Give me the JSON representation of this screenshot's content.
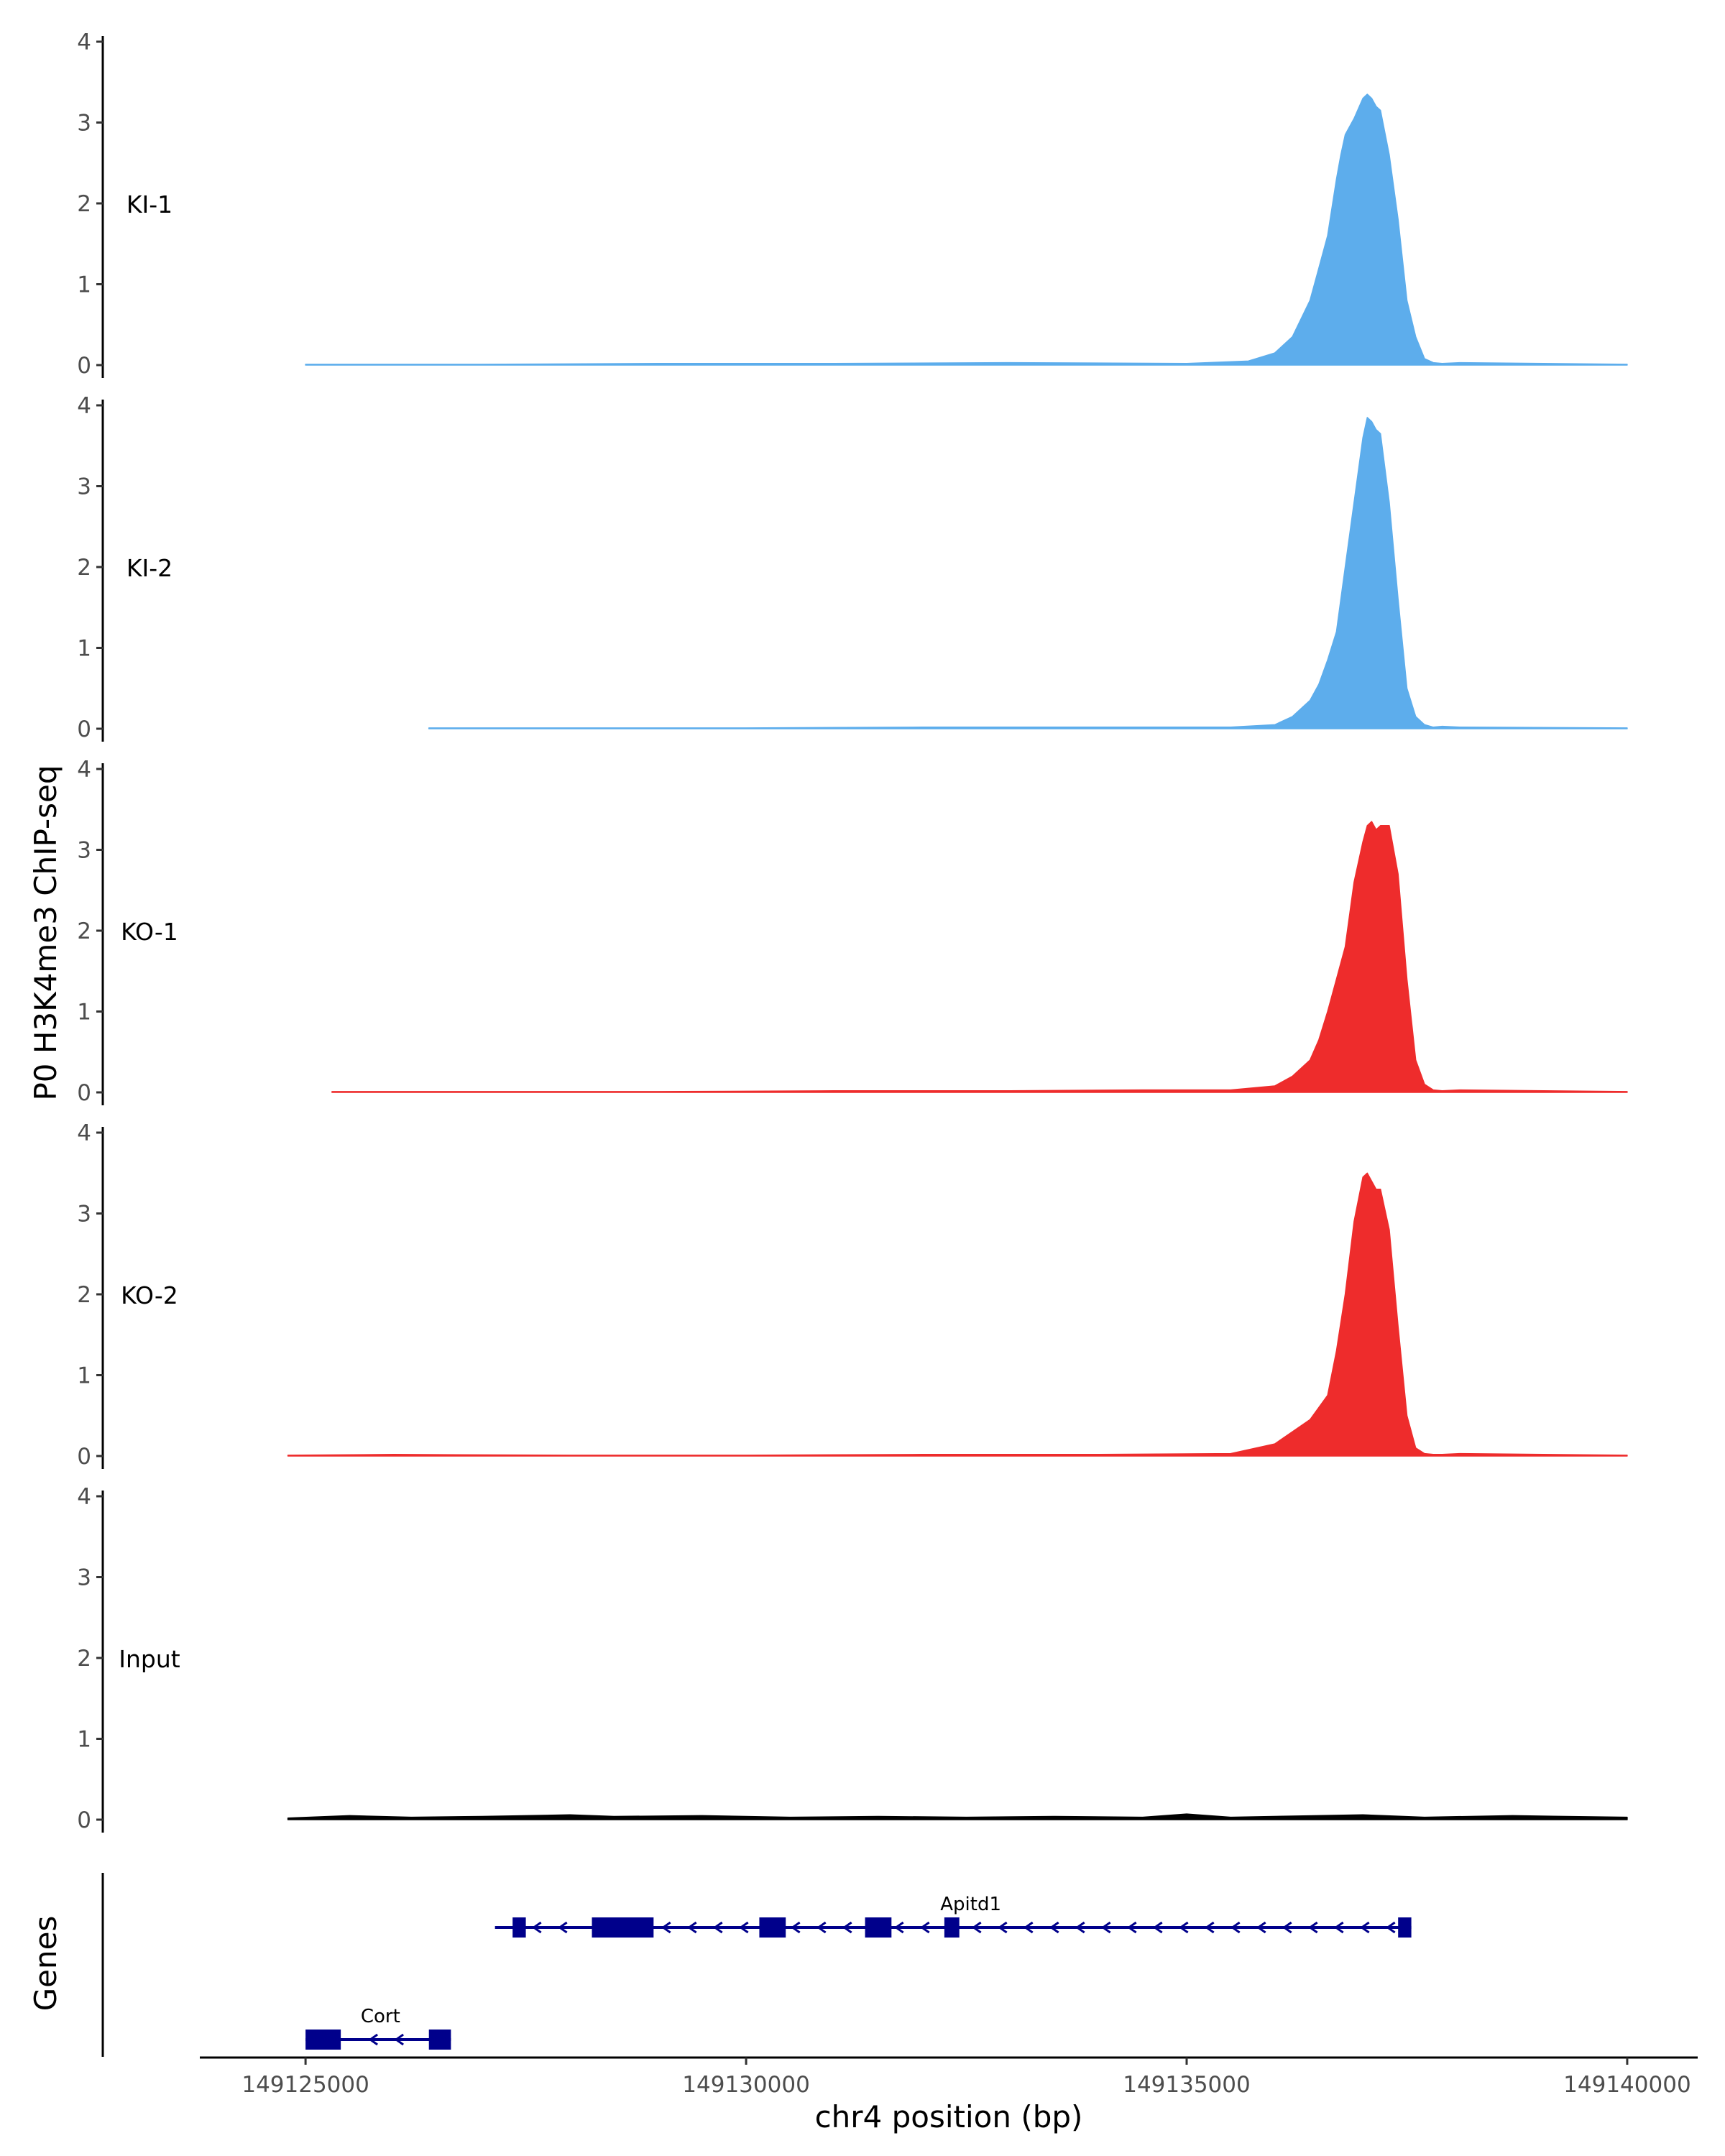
{
  "chart_data": {
    "type": "area",
    "ylabel": "P0 H3K4me3 ChIP-seq",
    "xlabel": "chr4 position (bp)",
    "genes_label": "Genes",
    "xlim": [
      149123800,
      149140800
    ],
    "ylim": [
      0,
      4
    ],
    "y_ticks": [
      "0",
      "1",
      "2",
      "3",
      "4"
    ],
    "x_ticks": [
      {
        "value": 149125000,
        "label": "149125000"
      },
      {
        "value": 149130000,
        "label": "149130000"
      },
      {
        "value": 149135000,
        "label": "149135000"
      },
      {
        "value": 149140000,
        "label": "149140000"
      }
    ],
    "colors": {
      "KI": "#5dadec",
      "KO": "#ee2c2c",
      "Input": "#000000",
      "gene": "#00008b"
    },
    "tracks": [
      {
        "label": "KI-1",
        "color": "#5dadec",
        "x": [
          149125000,
          149127000,
          149129000,
          149131000,
          149133000,
          149135000,
          149135700,
          149136000,
          149136200,
          149136400,
          149136500,
          149136600,
          149136700,
          149136750,
          149136800,
          149136900,
          149137000,
          149137050,
          149137100,
          149137150,
          149137200,
          149137300,
          149137400,
          149137500,
          149137600,
          149137700,
          149137800,
          149137900,
          149138100,
          149140000
        ],
        "y": [
          0.01,
          0.01,
          0.02,
          0.02,
          0.03,
          0.02,
          0.05,
          0.15,
          0.35,
          0.8,
          1.2,
          1.6,
          2.3,
          2.6,
          2.85,
          3.05,
          3.3,
          3.35,
          3.3,
          3.2,
          3.15,
          2.6,
          1.8,
          0.8,
          0.35,
          0.08,
          0.03,
          0.02,
          0.03,
          0.01
        ]
      },
      {
        "label": "KI-2",
        "color": "#5dadec",
        "x": [
          149126400,
          149128000,
          149130000,
          149132000,
          149134000,
          149135500,
          149136000,
          149136200,
          149136400,
          149136500,
          149136600,
          149136700,
          149136800,
          149136900,
          149137000,
          149137050,
          149137100,
          149137150,
          149137200,
          149137300,
          149137400,
          149137500,
          149137600,
          149137700,
          149137800,
          149137900,
          149138100,
          149140000
        ],
        "y": [
          0.01,
          0.01,
          0.01,
          0.02,
          0.02,
          0.02,
          0.05,
          0.15,
          0.35,
          0.55,
          0.85,
          1.2,
          2.0,
          2.8,
          3.6,
          3.85,
          3.8,
          3.7,
          3.65,
          2.8,
          1.6,
          0.5,
          0.15,
          0.05,
          0.02,
          0.03,
          0.02,
          0.01
        ]
      },
      {
        "label": "KO-1",
        "color": "#ee2c2c",
        "x": [
          149125300,
          149127500,
          149129000,
          149131000,
          149133000,
          149134500,
          149135500,
          149136000,
          149136200,
          149136400,
          149136500,
          149136600,
          149136700,
          149136800,
          149136900,
          149137000,
          149137050,
          149137100,
          149137150,
          149137200,
          149137300,
          149137400,
          149137500,
          149137600,
          149137700,
          149137800,
          149137900,
          149138100,
          149140000
        ],
        "y": [
          0.01,
          0.01,
          0.01,
          0.02,
          0.02,
          0.03,
          0.03,
          0.08,
          0.2,
          0.4,
          0.65,
          1.0,
          1.4,
          1.8,
          2.6,
          3.1,
          3.3,
          3.35,
          3.25,
          3.3,
          3.3,
          2.7,
          1.4,
          0.4,
          0.1,
          0.03,
          0.02,
          0.03,
          0.01
        ]
      },
      {
        "label": "KO-2",
        "color": "#ee2c2c",
        "x": [
          149124800,
          149126000,
          149128000,
          149130000,
          149132000,
          149134000,
          149135500,
          149136000,
          149136200,
          149136400,
          149136500,
          149136600,
          149136700,
          149136800,
          149136900,
          149137000,
          149137050,
          149137100,
          149137150,
          149137200,
          149137300,
          149137400,
          149137500,
          149137600,
          149137700,
          149137800,
          149137900,
          149138100,
          149140000
        ],
        "y": [
          0.01,
          0.02,
          0.01,
          0.01,
          0.02,
          0.02,
          0.03,
          0.15,
          0.3,
          0.45,
          0.6,
          0.75,
          1.3,
          2.0,
          2.9,
          3.45,
          3.5,
          3.4,
          3.3,
          3.3,
          2.8,
          1.6,
          0.5,
          0.1,
          0.03,
          0.02,
          0.02,
          0.03,
          0.01
        ]
      },
      {
        "label": "Input",
        "color": "#000000",
        "x": [
          149124800,
          149125500,
          149126200,
          149127000,
          149128000,
          149128500,
          149129500,
          149130500,
          149131500,
          149132500,
          149133500,
          149134500,
          149135000,
          149135500,
          149136500,
          149137000,
          149137700,
          149138700,
          149139300,
          149140000
        ],
        "y": [
          0.02,
          0.05,
          0.03,
          0.04,
          0.06,
          0.04,
          0.05,
          0.03,
          0.04,
          0.03,
          0.04,
          0.03,
          0.07,
          0.03,
          0.05,
          0.06,
          0.03,
          0.05,
          0.04,
          0.03
        ]
      }
    ],
    "genes": [
      {
        "name": "Apitd1",
        "strand": "-",
        "start": 149127150,
        "end": 149137550,
        "exons": [
          [
            149127350,
            149127500
          ],
          [
            149128250,
            149128950
          ],
          [
            149130150,
            149130450
          ],
          [
            149131350,
            149131650
          ],
          [
            149132250,
            149132420
          ],
          [
            149137400,
            149137550
          ]
        ]
      },
      {
        "name": "Cort",
        "strand": "-",
        "start": 149125000,
        "end": 149126650,
        "exons": [
          [
            149125000,
            149125400
          ],
          [
            149126400,
            149126650
          ]
        ]
      }
    ]
  }
}
